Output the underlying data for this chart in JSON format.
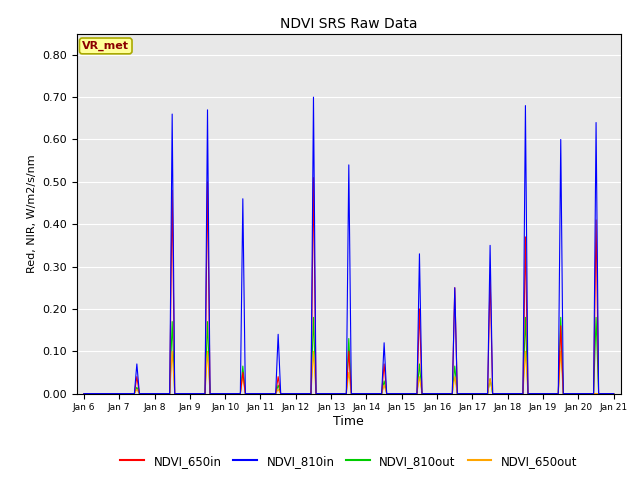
{
  "title": "NDVI SRS Raw Data",
  "xlabel": "Time",
  "ylabel": "Red, NIR, W/m2/s/nm",
  "ylim": [
    0.0,
    0.85
  ],
  "yticks": [
    0.0,
    0.1,
    0.2,
    0.3,
    0.4,
    0.5,
    0.6,
    0.7,
    0.8
  ],
  "annotation_text": "VR_met",
  "annotation_color": "#8B0000",
  "annotation_bg": "#FFFF99",
  "bg_color": "#E8E8E8",
  "colors": {
    "NDVI_650in": "#FF0000",
    "NDVI_810in": "#0000FF",
    "NDVI_810out": "#00CC00",
    "NDVI_650out": "#FFA500"
  },
  "x_tick_labels": [
    "Jan 6",
    "Jan 7",
    "Jan 8",
    "Jan 9",
    "Jan 10",
    "Jan 11",
    "Jan 12",
    "Jan 13",
    "Jan 14",
    "Jan 15",
    "Jan 16",
    "Jan 17",
    "Jan 18",
    "Jan 19",
    "Jan 20",
    "Jan 21"
  ],
  "peaks": {
    "Jan 7": {
      "NDVI_650in": 0.04,
      "NDVI_810in": 0.07,
      "NDVI_810out": 0.015,
      "NDVI_650out": 0.01
    },
    "Jan 8": {
      "NDVI_650in": 0.48,
      "NDVI_810in": 0.66,
      "NDVI_810out": 0.17,
      "NDVI_650out": 0.1
    },
    "Jan 9": {
      "NDVI_650in": 0.5,
      "NDVI_810in": 0.67,
      "NDVI_810out": 0.17,
      "NDVI_650out": 0.1
    },
    "Jan 10": {
      "NDVI_650in": 0.05,
      "NDVI_810in": 0.46,
      "NDVI_810out": 0.065,
      "NDVI_650out": 0.04
    },
    "Jan 11": {
      "NDVI_650in": 0.04,
      "NDVI_810in": 0.14,
      "NDVI_810out": 0.02,
      "NDVI_650out": 0.01
    },
    "Jan 12": {
      "NDVI_650in": 0.51,
      "NDVI_810in": 0.7,
      "NDVI_810out": 0.18,
      "NDVI_650out": 0.1
    },
    "Jan 13": {
      "NDVI_650in": 0.1,
      "NDVI_810in": 0.54,
      "NDVI_810out": 0.13,
      "NDVI_650out": 0.05
    },
    "Jan 14": {
      "NDVI_650in": 0.07,
      "NDVI_810in": 0.12,
      "NDVI_810out": 0.03,
      "NDVI_650out": 0.02
    },
    "Jan 15": {
      "NDVI_650in": 0.2,
      "NDVI_810in": 0.33,
      "NDVI_810out": 0.07,
      "NDVI_650out": 0.04
    },
    "Jan 16": {
      "NDVI_650in": 0.25,
      "NDVI_810in": 0.25,
      "NDVI_810out": 0.065,
      "NDVI_650out": 0.04
    },
    "Jan 17": {
      "NDVI_650in": 0.28,
      "NDVI_810in": 0.35,
      "NDVI_810out": 0.035,
      "NDVI_650out": 0.035
    },
    "Jan 18": {
      "NDVI_650in": 0.37,
      "NDVI_810in": 0.68,
      "NDVI_810out": 0.18,
      "NDVI_650out": 0.1
    },
    "Jan 19": {
      "NDVI_650in": 0.16,
      "NDVI_810in": 0.6,
      "NDVI_810out": 0.18,
      "NDVI_650out": 0.1
    },
    "Jan 20": {
      "NDVI_650in": 0.41,
      "NDVI_810in": 0.64,
      "NDVI_810out": 0.18,
      "NDVI_650out": 0.0
    }
  },
  "figsize": [
    6.4,
    4.8
  ],
  "dpi": 100
}
